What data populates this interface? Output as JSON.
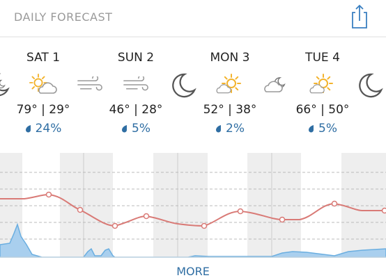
{
  "header": {
    "title": "DAILY FORECAST"
  },
  "days": [
    {
      "label": "SAT 1",
      "temps": "79° | 29°",
      "precip": "24%"
    },
    {
      "label": "SUN 2",
      "temps": "46° | 28°",
      "precip": "5%"
    },
    {
      "label": "MON 3",
      "temps": "52° | 38°",
      "precip": "2%"
    },
    {
      "label": "TUE 4",
      "temps": "66° | 50°",
      "precip": "5%"
    }
  ],
  "footer": {
    "more": "MORE"
  }
}
